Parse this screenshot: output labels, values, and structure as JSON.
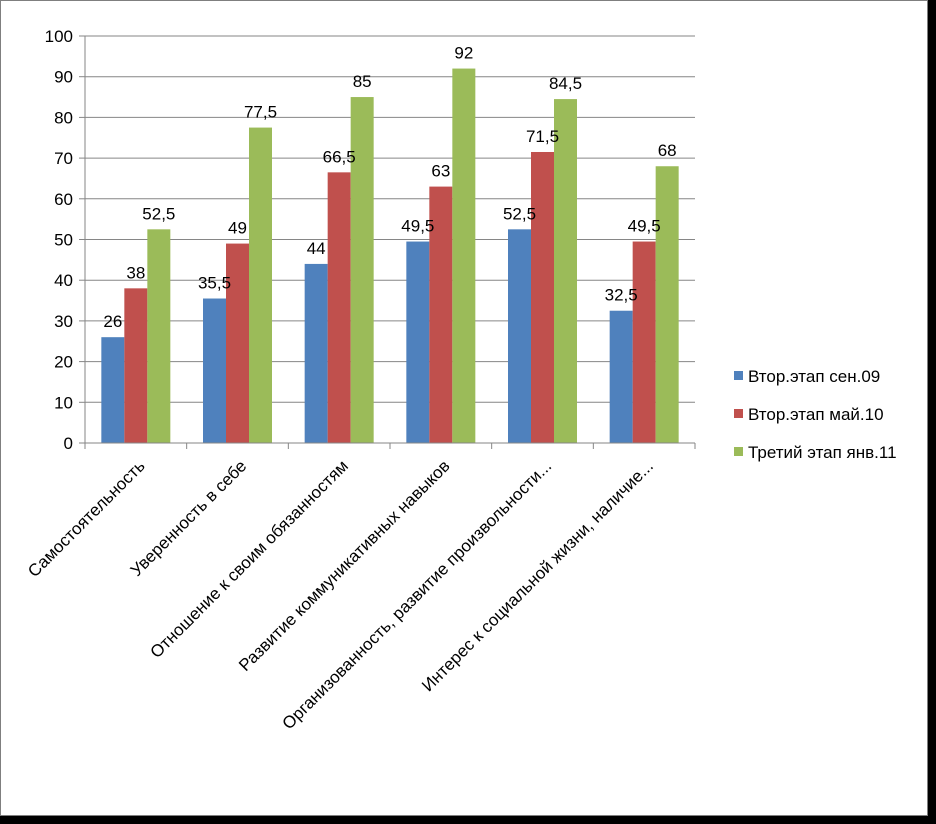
{
  "chart_data": {
    "type": "bar",
    "categories": [
      "Самостоятельность",
      "Уверенность в себе",
      "Отношение к своим обязанностям",
      "Развитие коммуникативных навыков",
      "Организованность, развитие произвольности...",
      "Интерес к социальной жизни, наличие..."
    ],
    "series": [
      {
        "name": "Втор.этап сен.09",
        "color": "#4f81bd",
        "values": [
          26,
          35.5,
          44,
          49.5,
          52.5,
          32.5
        ],
        "labels": [
          "26",
          "35,5",
          "44",
          "49,5",
          "52,5",
          "32,5"
        ]
      },
      {
        "name": "Втор.этап май.10",
        "color": "#c0504d",
        "values": [
          38,
          49,
          66.5,
          63,
          71.5,
          49.5
        ],
        "labels": [
          "38",
          "49",
          "66,5",
          "63",
          "71,5",
          "49,5"
        ]
      },
      {
        "name": "Третий этап янв.11",
        "color": "#9bbb59",
        "values": [
          52.5,
          77.5,
          85,
          92,
          84.5,
          68
        ],
        "labels": [
          "52,5",
          "77,5",
          "85",
          "92",
          "84,5",
          "68"
        ]
      }
    ],
    "yticks": [
      "0",
      "10",
      "20",
      "30",
      "40",
      "50",
      "60",
      "70",
      "80",
      "90",
      "100"
    ],
    "ylim": [
      0,
      100
    ],
    "grid": true,
    "legend_position": "right",
    "title": "",
    "xlabel": "",
    "ylabel": ""
  }
}
